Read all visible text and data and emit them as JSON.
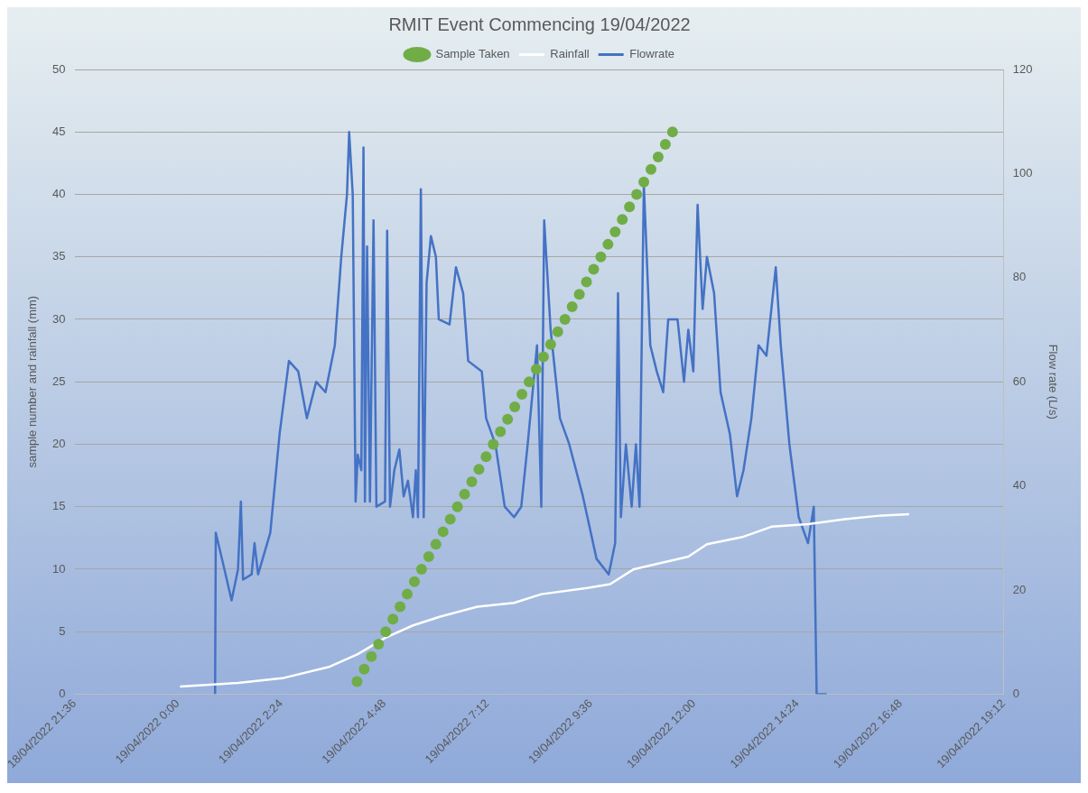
{
  "chart_data": {
    "type": "line",
    "title": "RMIT Event Commencing 19/04/2022",
    "ylabel": "sample number and rainfall (mm)",
    "y2label": "Flow rate (L/s)",
    "xlim": [
      "2022-04-18T21:36",
      "2022-04-19T19:12"
    ],
    "xticks": [
      {
        "value": "2022-04-18T21:36",
        "label": "18/04/2022 21:36"
      },
      {
        "value": "2022-04-19T00:00",
        "label": "19/04/2022 0:00"
      },
      {
        "value": "2022-04-19T02:24",
        "label": "19/04/2022 2:24"
      },
      {
        "value": "2022-04-19T04:48",
        "label": "19/04/2022 4:48"
      },
      {
        "value": "2022-04-19T07:12",
        "label": "19/04/2022 7:12"
      },
      {
        "value": "2022-04-19T09:36",
        "label": "19/04/2022 9:36"
      },
      {
        "value": "2022-04-19T12:00",
        "label": "19/04/2022 12:00"
      },
      {
        "value": "2022-04-19T14:24",
        "label": "19/04/2022 14:24"
      },
      {
        "value": "2022-04-19T16:48",
        "label": "19/04/2022 16:48"
      },
      {
        "value": "2022-04-19T19:12",
        "label": "19/04/2022 19:12"
      }
    ],
    "ylim": [
      0,
      50
    ],
    "yticks": [
      0,
      5,
      10,
      15,
      20,
      25,
      30,
      35,
      40,
      45,
      50
    ],
    "y2lim": [
      0,
      120
    ],
    "y2ticks": [
      0,
      20,
      40,
      60,
      80,
      100,
      120
    ],
    "grid": "y",
    "legend": "top",
    "series": [
      {
        "name": "Sample Taken",
        "type": "scatter",
        "marker": "circle",
        "color": "#70ad47",
        "x": [
          "2022-04-19T04:10",
          "2022-04-19T04:20",
          "2022-04-19T04:30",
          "2022-04-19T04:40",
          "2022-04-19T04:50",
          "2022-04-19T05:00",
          "2022-04-19T05:10",
          "2022-04-19T05:20",
          "2022-04-19T05:30",
          "2022-04-19T05:40",
          "2022-04-19T05:50",
          "2022-04-19T06:00",
          "2022-04-19T06:10",
          "2022-04-19T06:20",
          "2022-04-19T06:30",
          "2022-04-19T06:40",
          "2022-04-19T06:50",
          "2022-04-19T07:00",
          "2022-04-19T07:10",
          "2022-04-19T07:20",
          "2022-04-19T07:30",
          "2022-04-19T07:40",
          "2022-04-19T07:50",
          "2022-04-19T08:00",
          "2022-04-19T08:10",
          "2022-04-19T08:20",
          "2022-04-19T08:30",
          "2022-04-19T08:40",
          "2022-04-19T08:50",
          "2022-04-19T09:00",
          "2022-04-19T09:10",
          "2022-04-19T09:20",
          "2022-04-19T09:30",
          "2022-04-19T09:40",
          "2022-04-19T09:50",
          "2022-04-19T10:00",
          "2022-04-19T10:10",
          "2022-04-19T10:20",
          "2022-04-19T10:30",
          "2022-04-19T10:40",
          "2022-04-19T10:50",
          "2022-04-19T11:00",
          "2022-04-19T11:10",
          "2022-04-19T11:20",
          "2022-04-19T11:30"
        ],
        "values": [
          1,
          2,
          3,
          4,
          5,
          6,
          7,
          8,
          9,
          10,
          11,
          12,
          13,
          14,
          15,
          16,
          17,
          18,
          19,
          20,
          21,
          22,
          23,
          24,
          25,
          26,
          27,
          28,
          29,
          30,
          31,
          32,
          33,
          34,
          35,
          36,
          37,
          38,
          39,
          40,
          41,
          42,
          43,
          44,
          45
        ]
      },
      {
        "name": "Rainfall",
        "color": "#ffffff",
        "x": [
          "2022-04-19T00:03",
          "2022-04-19T01:24",
          "2022-04-19T02:28",
          "2022-04-19T03:32",
          "2022-04-19T04:11",
          "2022-04-19T04:49",
          "2022-04-19T05:28",
          "2022-04-19T06:06",
          "2022-04-19T06:58",
          "2022-04-19T07:49",
          "2022-04-19T08:27",
          "2022-04-19T09:31",
          "2022-04-19T10:03",
          "2022-04-19T10:36",
          "2022-04-19T11:52",
          "2022-04-19T12:18",
          "2022-04-19T13:09",
          "2022-04-19T13:48",
          "2022-04-19T14:39",
          "2022-04-19T15:30",
          "2022-04-19T16:22",
          "2022-04-19T17:00"
        ],
        "values": [
          0.6,
          0.9,
          1.3,
          2.2,
          3.2,
          4.5,
          5.5,
          6.2,
          7.0,
          7.3,
          8.0,
          8.5,
          8.8,
          10.0,
          11.0,
          12.0,
          12.6,
          13.4,
          13.6,
          14.0,
          14.3,
          14.4
        ]
      },
      {
        "name": "Flowrate",
        "axis": "y2",
        "color": "#4472c4",
        "x": [
          "2022-04-19T00:52",
          "2022-04-19T00:53",
          "2022-04-19T01:05",
          "2022-04-19T01:15",
          "2022-04-19T01:24",
          "2022-04-19T01:28",
          "2022-04-19T01:31",
          "2022-04-19T01:43",
          "2022-04-19T01:47",
          "2022-04-19T01:52",
          "2022-04-19T02:09",
          "2022-04-19T02:22",
          "2022-04-19T02:35",
          "2022-04-19T02:48",
          "2022-04-19T03:00",
          "2022-04-19T03:13",
          "2022-04-19T03:26",
          "2022-04-19T03:39",
          "2022-04-19T03:48",
          "2022-04-19T03:56",
          "2022-04-19T03:59",
          "2022-04-19T04:04",
          "2022-04-19T04:08",
          "2022-04-19T04:11",
          "2022-04-19T04:16",
          "2022-04-19T04:19",
          "2022-04-19T04:21",
          "2022-04-19T04:24",
          "2022-04-19T04:28",
          "2022-04-19T04:33",
          "2022-04-19T04:37",
          "2022-04-19T04:49",
          "2022-04-19T04:52",
          "2022-04-19T04:56",
          "2022-04-19T05:02",
          "2022-04-19T05:09",
          "2022-04-19T05:15",
          "2022-04-19T05:21",
          "2022-04-19T05:28",
          "2022-04-19T05:32",
          "2022-04-19T05:35",
          "2022-04-19T05:39",
          "2022-04-19T05:43",
          "2022-04-19T05:47",
          "2022-04-19T05:53",
          "2022-04-19T06:00",
          "2022-04-19T06:04",
          "2022-04-19T06:19",
          "2022-04-19T06:28",
          "2022-04-19T06:38",
          "2022-04-19T06:45",
          "2022-04-19T07:04",
          "2022-04-19T07:10",
          "2022-04-19T07:23",
          "2022-04-19T07:36",
          "2022-04-19T07:49",
          "2022-04-19T07:59",
          "2022-04-19T08:08",
          "2022-04-19T08:21",
          "2022-04-19T08:27",
          "2022-04-19T08:31",
          "2022-04-19T08:40",
          "2022-04-19T08:53",
          "2022-04-19T09:06",
          "2022-04-19T09:25",
          "2022-04-19T09:44",
          "2022-04-19T10:01",
          "2022-04-19T10:10",
          "2022-04-19T10:14",
          "2022-04-19T10:18",
          "2022-04-19T10:25",
          "2022-04-19T10:33",
          "2022-04-19T10:39",
          "2022-04-19T10:44",
          "2022-04-19T10:50",
          "2022-04-19T10:59",
          "2022-04-19T11:08",
          "2022-04-19T11:17",
          "2022-04-19T11:24",
          "2022-04-19T11:37",
          "2022-04-19T11:46",
          "2022-04-19T11:52",
          "2022-04-19T11:59",
          "2022-04-19T12:05",
          "2022-04-19T12:12",
          "2022-04-19T12:18",
          "2022-04-19T12:28",
          "2022-04-19T12:37",
          "2022-04-19T12:50",
          "2022-04-19T13:00",
          "2022-04-19T13:09",
          "2022-04-19T13:20",
          "2022-04-19T13:30",
          "2022-04-19T13:41",
          "2022-04-19T13:54",
          "2022-04-19T14:01",
          "2022-04-19T14:13",
          "2022-04-19T14:26",
          "2022-04-19T14:39",
          "2022-04-19T14:47",
          "2022-04-19T14:51",
          "2022-04-19T15:05"
        ],
        "values": [
          0,
          31,
          24,
          18,
          24,
          37,
          22,
          23,
          29,
          23,
          31,
          50,
          64,
          62,
          53,
          60,
          58,
          67,
          84,
          96,
          108,
          96,
          37,
          46,
          43,
          105,
          37,
          86,
          37,
          91,
          36,
          37,
          89,
          36,
          43,
          47,
          38,
          41,
          34,
          43,
          34,
          97,
          34,
          79,
          88,
          84,
          72,
          71,
          82,
          77,
          64,
          62,
          53,
          48,
          36,
          34,
          36,
          48,
          67,
          36,
          91,
          70,
          53,
          48,
          38,
          26,
          23,
          29,
          77,
          34,
          48,
          36,
          48,
          36,
          98,
          67,
          62,
          58,
          72,
          72,
          60,
          70,
          62,
          94,
          74,
          84,
          77,
          58,
          50,
          38,
          43,
          53,
          67,
          65,
          82,
          67,
          48,
          34,
          29,
          36,
          0,
          0
        ]
      }
    ]
  }
}
